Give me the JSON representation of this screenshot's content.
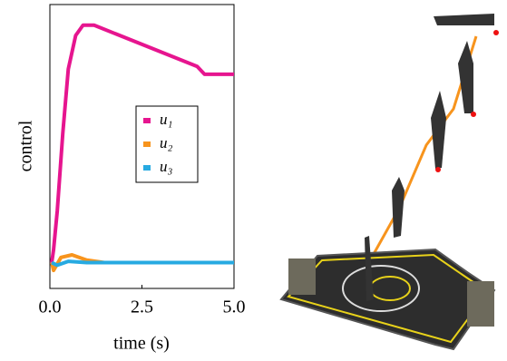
{
  "chart_data": {
    "type": "line",
    "x_label": "time (s)",
    "y_label": "control",
    "xlim": [
      0,
      5
    ],
    "ylim": [
      -0.1,
      1.0
    ],
    "xticks": [
      {
        "value": 0,
        "label": "0.0"
      },
      2.5,
      {
        "value": 5,
        "label": "5.0"
      }
    ],
    "series": [
      {
        "name": "u₁",
        "color": "#e6158f",
        "x": [
          0.05,
          0.1,
          0.2,
          0.35,
          0.5,
          0.7,
          0.9,
          1.2,
          4.0,
          4.2,
          5.0
        ],
        "values": [
          0,
          0.05,
          0.2,
          0.5,
          0.75,
          0.88,
          0.92,
          0.92,
          0.76,
          0.73,
          0.73
        ]
      },
      {
        "name": "u₂",
        "color": "#f7941d",
        "x": [
          0.05,
          0.1,
          0.3,
          0.6,
          1.0,
          1.5,
          5.0
        ],
        "values": [
          0,
          -0.03,
          0.02,
          0.03,
          0.01,
          0,
          0
        ]
      },
      {
        "name": "u₃",
        "color": "#27aae1",
        "x": [
          0.05,
          0.2,
          0.5,
          1.0,
          5.0
        ],
        "values": [
          0,
          -0.01,
          0.005,
          0,
          0
        ]
      }
    ]
  }
}
